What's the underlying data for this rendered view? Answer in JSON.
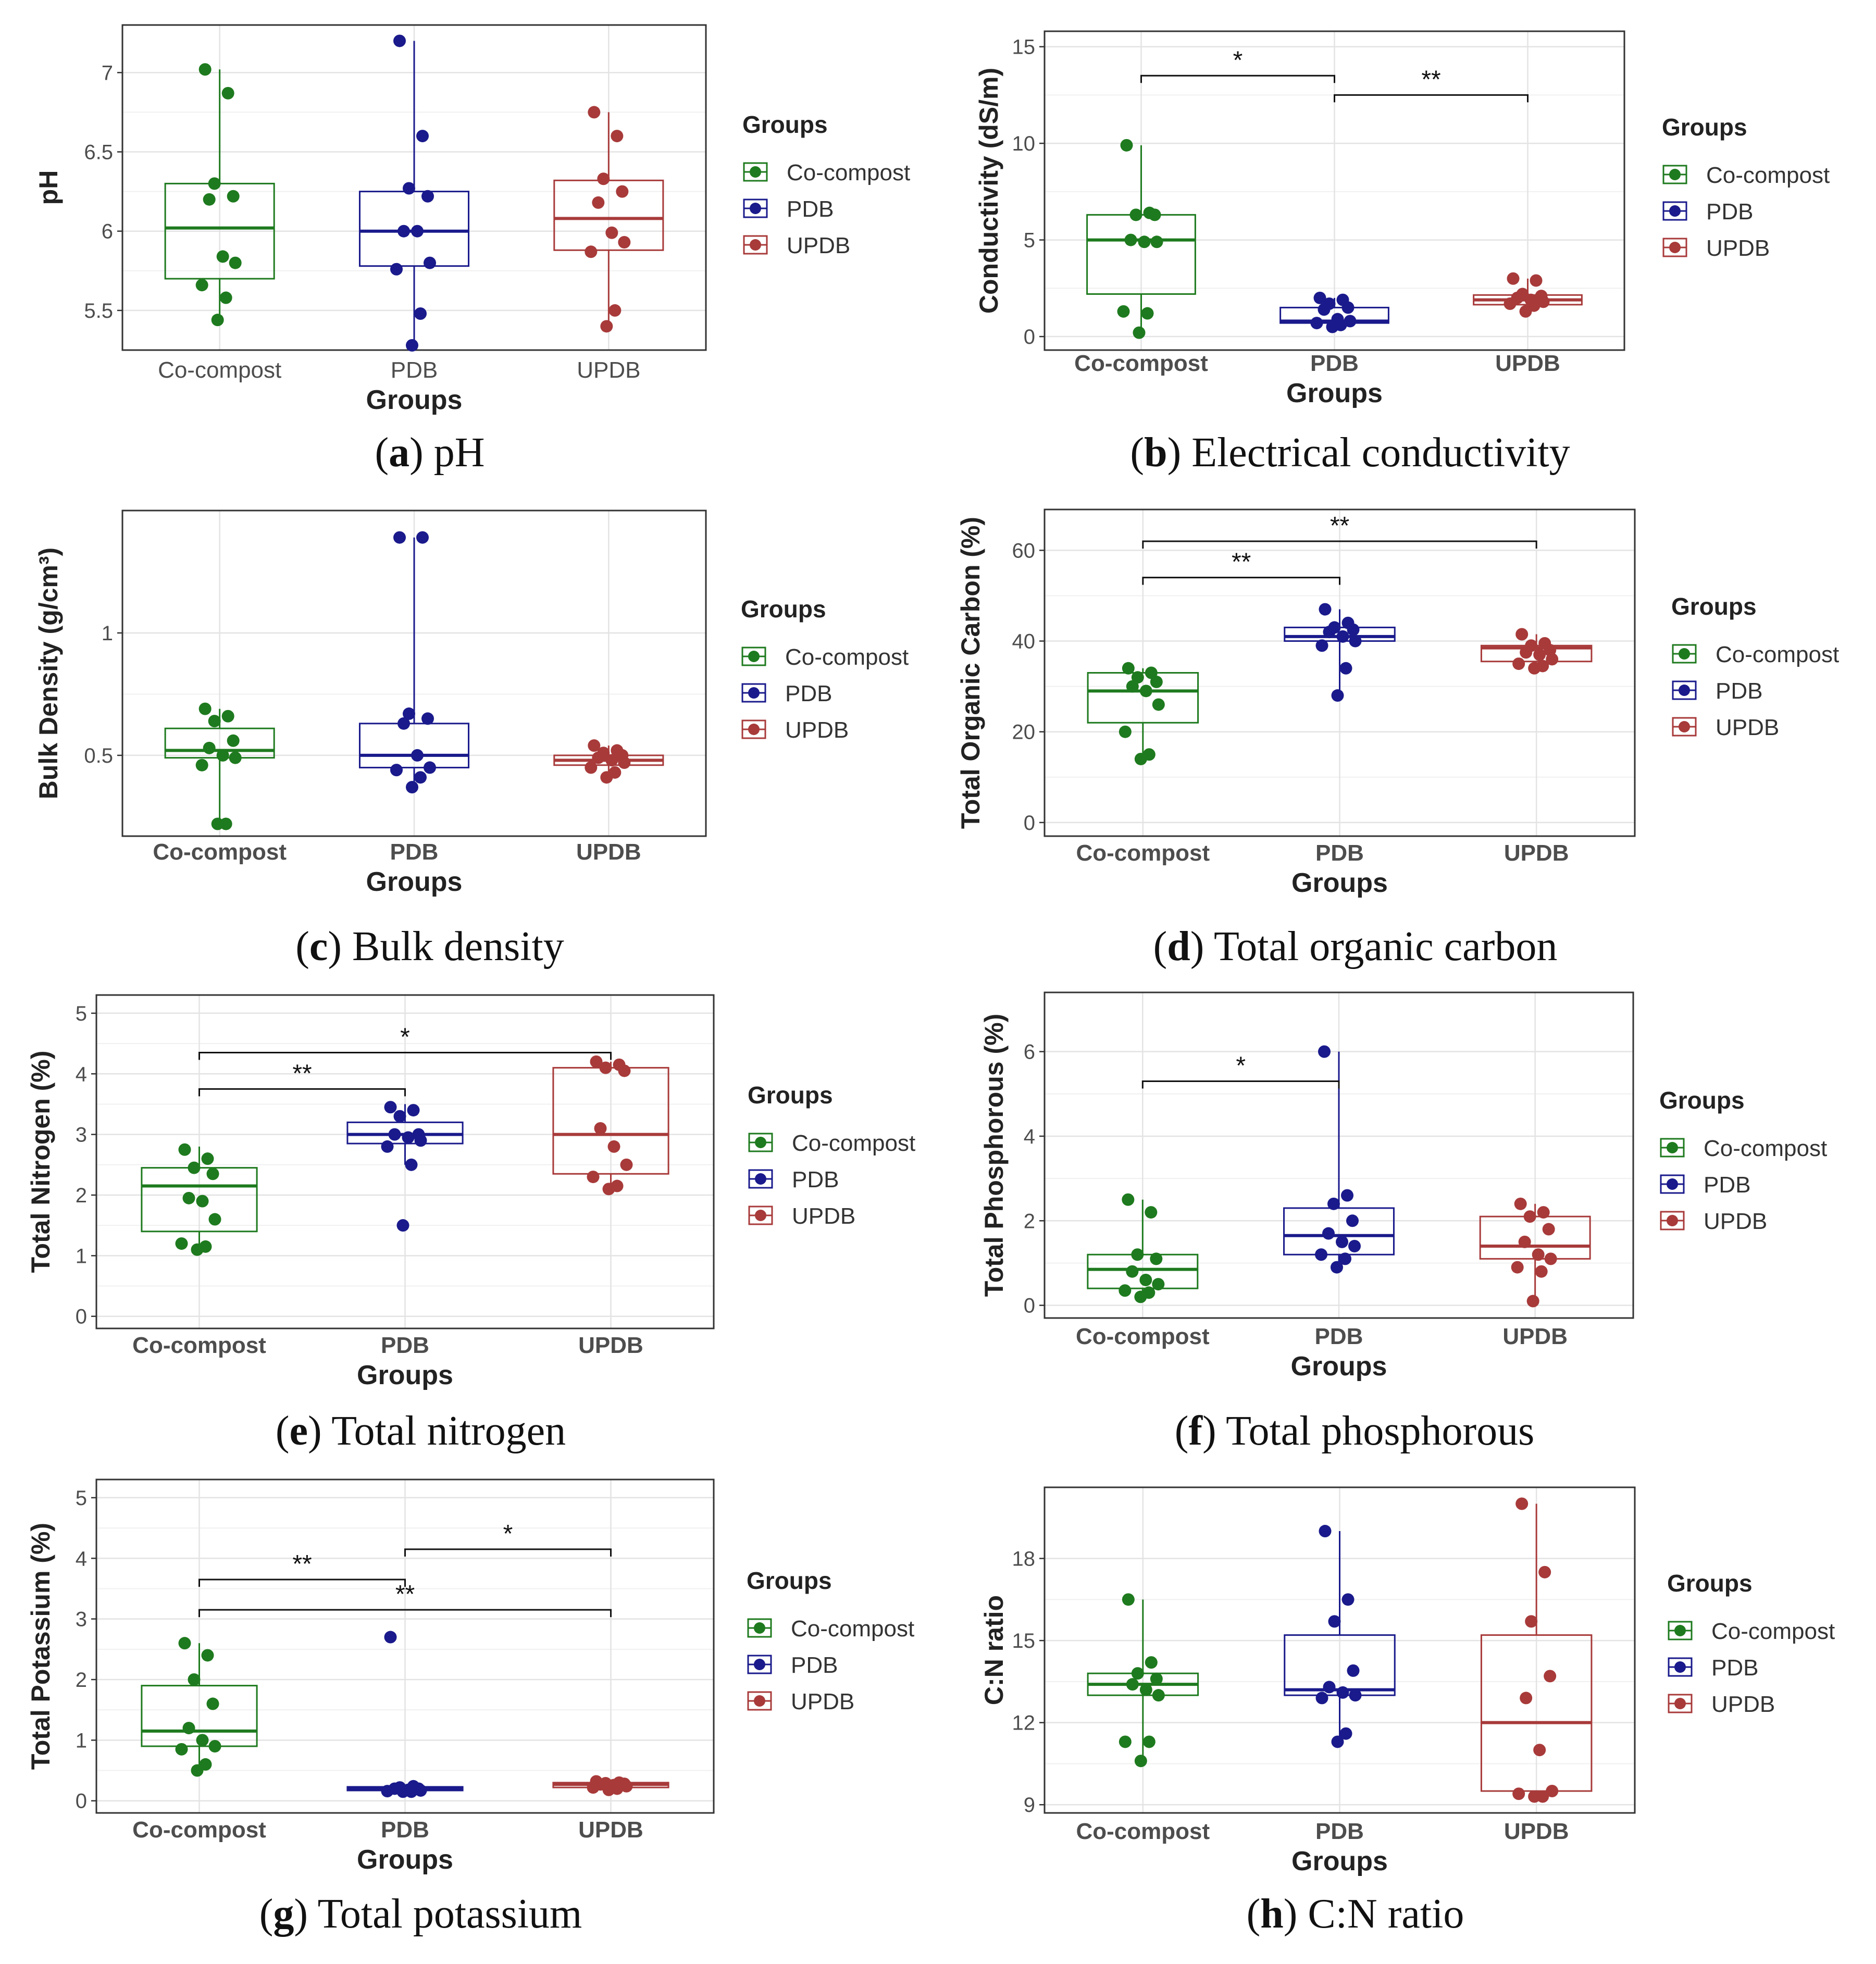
{
  "figure": {
    "group_label": "Groups",
    "groups": [
      "Co-compost",
      "PDB",
      "UPDB"
    ],
    "colors": {
      "Co-compost": "#1e7a1e",
      "PDB": "#1a1a8c",
      "UPDB": "#a83a3a"
    }
  },
  "chart_data": [
    {
      "type": "boxplot",
      "caption_letter": "a",
      "caption_text": " pH",
      "ylabel": "pH",
      "xlabel": "Groups",
      "yticks": [
        5.5,
        6.0,
        6.5,
        7.0
      ],
      "ylim": [
        5.25,
        7.3
      ],
      "categories": [
        "Co-compost",
        "PDB",
        "UPDB"
      ],
      "boxes": [
        {
          "q1": 5.7,
          "median": 6.02,
          "q3": 6.3,
          "wlo": 5.44,
          "whi": 7.02
        },
        {
          "q1": 5.78,
          "median": 6.0,
          "q3": 6.25,
          "wlo": 5.28,
          "whi": 7.2
        },
        {
          "q1": 5.88,
          "median": 6.08,
          "q3": 6.32,
          "wlo": 5.4,
          "whi": 6.75
        }
      ],
      "points": [
        [
          7.02,
          6.87,
          6.3,
          6.22,
          6.2,
          5.84,
          5.8,
          5.66,
          5.58,
          5.44
        ],
        [
          7.2,
          6.6,
          6.27,
          6.22,
          6.0,
          6.0,
          5.8,
          5.76,
          5.48,
          5.28
        ],
        [
          6.75,
          6.6,
          6.33,
          6.25,
          6.18,
          5.99,
          5.93,
          5.87,
          5.5,
          5.4
        ]
      ],
      "sig": [],
      "legend_title": "Groups"
    },
    {
      "type": "boxplot",
      "caption_letter": "b",
      "caption_text": " Electrical conductivity",
      "ylabel": "Conductivity (dS/m)",
      "xlabel": "Groups",
      "yticks": [
        0,
        5,
        10,
        15
      ],
      "ylim": [
        -0.7,
        15.8
      ],
      "categories": [
        "Co-compost",
        "PDB",
        "UPDB"
      ],
      "boxes": [
        {
          "q1": 2.2,
          "median": 5.0,
          "q3": 6.3,
          "wlo": 0.2,
          "whi": 9.9
        },
        {
          "q1": 0.7,
          "median": 0.8,
          "q3": 1.5,
          "wlo": 0.5,
          "whi": 2.0
        },
        {
          "q1": 1.65,
          "median": 1.9,
          "q3": 2.15,
          "wlo": 1.3,
          "whi": 3.0
        }
      ],
      "points": [
        [
          9.9,
          6.4,
          6.3,
          6.3,
          5.0,
          4.9,
          4.9,
          1.3,
          1.2,
          0.2
        ],
        [
          2.0,
          1.9,
          1.7,
          1.5,
          1.4,
          0.9,
          0.8,
          0.7,
          0.6,
          0.5
        ],
        [
          3.0,
          2.9,
          2.2,
          2.1,
          2.0,
          1.9,
          1.8,
          1.7,
          1.6,
          1.3
        ]
      ],
      "sig": [
        {
          "from": 0,
          "to": 1,
          "y": 13.5,
          "label": "*"
        },
        {
          "from": 1,
          "to": 2,
          "y": 12.5,
          "label": "**"
        }
      ],
      "legend_title": "Groups"
    },
    {
      "type": "boxplot",
      "caption_letter": "c",
      "caption_text": " Bulk density",
      "ylabel": "Bulk Density (g/cm³)",
      "xlabel": "Groups",
      "yticks": [
        0.5,
        1.0
      ],
      "ylim": [
        0.17,
        1.5
      ],
      "categories": [
        "Co-compost",
        "PDB",
        "UPDB"
      ],
      "boxes": [
        {
          "q1": 0.49,
          "median": 0.52,
          "q3": 0.61,
          "wlo": 0.22,
          "whi": 0.69
        },
        {
          "q1": 0.45,
          "median": 0.5,
          "q3": 0.63,
          "wlo": 0.37,
          "whi": 1.39
        },
        {
          "q1": 0.46,
          "median": 0.48,
          "q3": 0.5,
          "wlo": 0.41,
          "whi": 0.54
        }
      ],
      "points": [
        [
          0.69,
          0.66,
          0.64,
          0.56,
          0.53,
          0.5,
          0.49,
          0.46,
          0.22,
          0.22
        ],
        [
          1.39,
          1.39,
          0.67,
          0.65,
          0.63,
          0.5,
          0.45,
          0.44,
          0.41,
          0.37
        ],
        [
          0.54,
          0.52,
          0.51,
          0.5,
          0.49,
          0.48,
          0.47,
          0.45,
          0.43,
          0.41
        ]
      ],
      "sig": [],
      "legend_title": "Groups"
    },
    {
      "type": "boxplot",
      "caption_letter": "d",
      "caption_text": " Total organic carbon",
      "ylabel": "Total Organic Carbon (%)",
      "xlabel": "Groups",
      "yticks": [
        0,
        20,
        40,
        60
      ],
      "ylim": [
        -3,
        69
      ],
      "categories": [
        "Co-compost",
        "PDB",
        "UPDB"
      ],
      "boxes": [
        {
          "q1": 22,
          "median": 29,
          "q3": 33,
          "wlo": 14,
          "whi": 34
        },
        {
          "q1": 40,
          "median": 41,
          "q3": 43,
          "wlo": 28,
          "whi": 47
        },
        {
          "q1": 35.5,
          "median": 38.5,
          "q3": 39,
          "wlo": 34,
          "whi": 41.5
        }
      ],
      "points": [
        [
          34,
          33,
          32,
          31,
          30,
          29,
          26,
          20,
          15,
          14
        ],
        [
          47,
          44,
          43,
          42.5,
          42,
          41,
          40,
          39,
          34,
          28
        ],
        [
          41.5,
          39.5,
          39,
          38,
          37.5,
          37,
          36,
          35,
          34.5,
          34
        ]
      ],
      "sig": [
        {
          "from": 0,
          "to": 1,
          "y": 54,
          "label": "**"
        },
        {
          "from": 0,
          "to": 2,
          "y": 62,
          "label": "**"
        }
      ],
      "legend_title": "Groups"
    },
    {
      "type": "boxplot",
      "caption_letter": "e",
      "caption_text": " Total nitrogen",
      "ylabel": "Total Nitrogen (%)",
      "xlabel": "Groups",
      "yticks": [
        0,
        1,
        2,
        3,
        4,
        5
      ],
      "ylim": [
        -0.2,
        5.3
      ],
      "categories": [
        "Co-compost",
        "PDB",
        "UPDB"
      ],
      "boxes": [
        {
          "q1": 1.4,
          "median": 2.15,
          "q3": 2.45,
          "wlo": 1.1,
          "whi": 2.8
        },
        {
          "q1": 2.85,
          "median": 3.0,
          "q3": 3.2,
          "wlo": 2.5,
          "whi": 3.5
        },
        {
          "q1": 2.35,
          "median": 3.0,
          "q3": 4.1,
          "wlo": 2.05,
          "whi": 4.2
        }
      ],
      "points": [
        [
          2.75,
          2.6,
          2.45,
          2.35,
          1.95,
          1.9,
          1.6,
          1.2,
          1.15,
          1.1
        ],
        [
          3.45,
          3.4,
          3.3,
          3.0,
          3.0,
          2.95,
          2.9,
          2.8,
          2.5,
          1.5
        ],
        [
          4.2,
          4.15,
          4.1,
          4.05,
          3.1,
          2.8,
          2.5,
          2.3,
          2.15,
          2.1
        ]
      ],
      "sig": [
        {
          "from": 0,
          "to": 1,
          "y": 3.75,
          "label": "**"
        },
        {
          "from": 0,
          "to": 2,
          "y": 4.35,
          "label": "*"
        }
      ],
      "legend_title": "Groups"
    },
    {
      "type": "boxplot",
      "caption_letter": "f",
      "caption_text": " Total phosphorous",
      "ylabel": "Total Phosphorous (%)",
      "xlabel": "Groups",
      "yticks": [
        0,
        2,
        4,
        6
      ],
      "ylim": [
        -0.3,
        7.4
      ],
      "categories": [
        "Co-compost",
        "PDB",
        "UPDB"
      ],
      "boxes": [
        {
          "q1": 0.4,
          "median": 0.85,
          "q3": 1.2,
          "wlo": 0.2,
          "whi": 2.5
        },
        {
          "q1": 1.2,
          "median": 1.65,
          "q3": 2.3,
          "wlo": 0.9,
          "whi": 6.0
        },
        {
          "q1": 1.1,
          "median": 1.4,
          "q3": 2.1,
          "wlo": 0.1,
          "whi": 2.4
        }
      ],
      "points": [
        [
          2.5,
          2.2,
          1.2,
          1.1,
          0.8,
          0.6,
          0.5,
          0.35,
          0.3,
          0.2
        ],
        [
          6.0,
          2.6,
          2.4,
          2.0,
          1.7,
          1.5,
          1.4,
          1.2,
          1.1,
          0.9
        ],
        [
          2.4,
          2.2,
          2.1,
          1.8,
          1.5,
          1.2,
          1.1,
          0.9,
          0.8,
          0.1
        ]
      ],
      "sig": [
        {
          "from": 0,
          "to": 1,
          "y": 5.3,
          "label": "*"
        }
      ],
      "legend_title": "Groups"
    },
    {
      "type": "boxplot",
      "caption_letter": "g",
      "caption_text": " Total potassium",
      "ylabel": "Total Potassium (%)",
      "xlabel": "Groups",
      "yticks": [
        0,
        1,
        2,
        3,
        4,
        5
      ],
      "ylim": [
        -0.2,
        5.3
      ],
      "categories": [
        "Co-compost",
        "PDB",
        "UPDB"
      ],
      "boxes": [
        {
          "q1": 0.9,
          "median": 1.15,
          "q3": 1.9,
          "wlo": 0.5,
          "whi": 2.6
        },
        {
          "q1": 0.17,
          "median": 0.2,
          "q3": 0.23,
          "wlo": 0.15,
          "whi": 0.25
        },
        {
          "q1": 0.22,
          "median": 0.27,
          "q3": 0.3,
          "wlo": 0.18,
          "whi": 0.32
        }
      ],
      "points": [
        [
          2.6,
          2.4,
          2.0,
          1.6,
          1.2,
          1.0,
          0.9,
          0.85,
          0.6,
          0.5
        ],
        [
          2.7,
          0.24,
          0.22,
          0.2,
          0.2,
          0.18,
          0.17,
          0.16,
          0.15,
          0.15
        ],
        [
          0.32,
          0.3,
          0.29,
          0.28,
          0.27,
          0.26,
          0.24,
          0.22,
          0.2,
          0.18
        ]
      ],
      "sig": [
        {
          "from": 1,
          "to": 2,
          "y": 4.15,
          "label": "*"
        },
        {
          "from": 0,
          "to": 1,
          "y": 3.65,
          "label": "**"
        },
        {
          "from": 0,
          "to": 2,
          "y": 3.15,
          "label": "**"
        }
      ],
      "legend_title": "Groups"
    },
    {
      "type": "boxplot",
      "caption_letter": "h",
      "caption_text": " C:N ratio",
      "ylabel": "C:N ratio",
      "xlabel": "Groups",
      "yticks": [
        9,
        12,
        15,
        18
      ],
      "ylim": [
        8.7,
        20.6
      ],
      "categories": [
        "Co-compost",
        "PDB",
        "UPDB"
      ],
      "boxes": [
        {
          "q1": 13.0,
          "median": 13.4,
          "q3": 13.8,
          "wlo": 10.6,
          "whi": 16.5
        },
        {
          "q1": 13.0,
          "median": 13.2,
          "q3": 15.2,
          "wlo": 11.3,
          "whi": 19.0
        },
        {
          "q1": 9.5,
          "median": 12.0,
          "q3": 15.2,
          "wlo": 9.3,
          "whi": 20.0
        }
      ],
      "points": [
        [
          16.5,
          14.2,
          13.8,
          13.6,
          13.4,
          13.2,
          13.0,
          11.3,
          11.3,
          10.6
        ],
        [
          19.0,
          16.5,
          15.7,
          13.9,
          13.3,
          13.1,
          13.0,
          12.9,
          11.6,
          11.3
        ],
        [
          20.0,
          17.5,
          15.7,
          13.7,
          12.9,
          11.0,
          9.5,
          9.4,
          9.3,
          9.3
        ]
      ],
      "sig": [],
      "legend_title": "Groups"
    }
  ]
}
